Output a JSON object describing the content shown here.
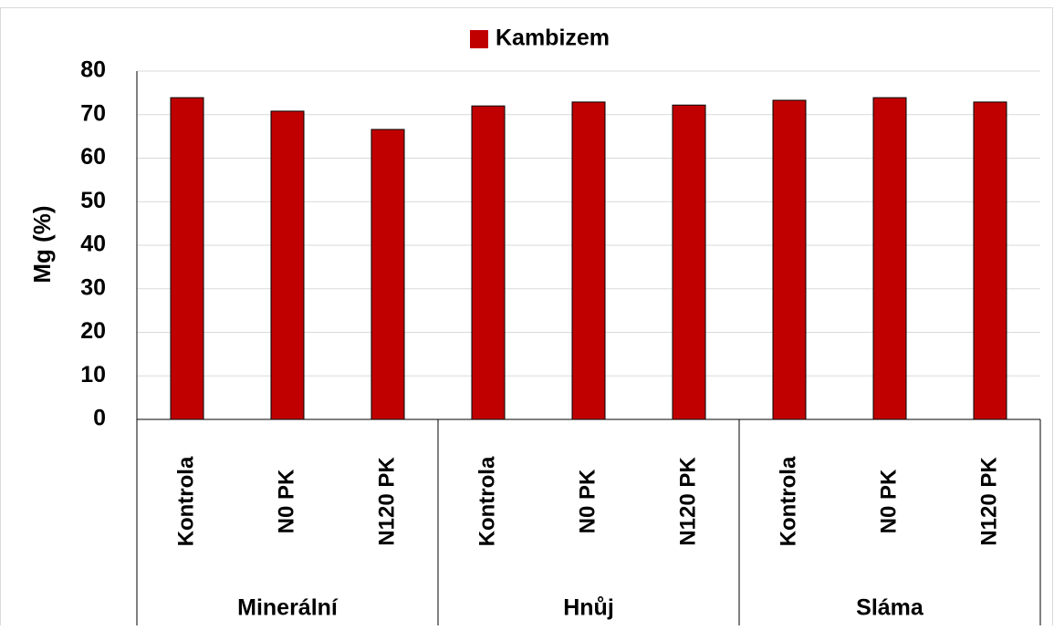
{
  "chart_data": {
    "type": "bar",
    "ylabel": "Mg (%)",
    "groups": [
      "Minerální",
      "Hnůj",
      "Sláma"
    ],
    "categories": [
      "Kontrola",
      "N0 PK",
      "N120 PK",
      "Kontrola",
      "N0 PK",
      "N120 PK",
      "Kontrola",
      "N0 PK",
      "N120 PK"
    ],
    "series": [
      {
        "name": "Kambizem",
        "color": "#c00000",
        "values": [
          73.9,
          70.8,
          66.6,
          72.0,
          72.9,
          72.2,
          73.3,
          73.9,
          72.9
        ]
      }
    ],
    "ylim": [
      0,
      80
    ],
    "yticks": [
      0,
      10,
      20,
      30,
      40,
      50,
      60,
      70,
      80
    ],
    "grid": true,
    "legend": "top"
  }
}
